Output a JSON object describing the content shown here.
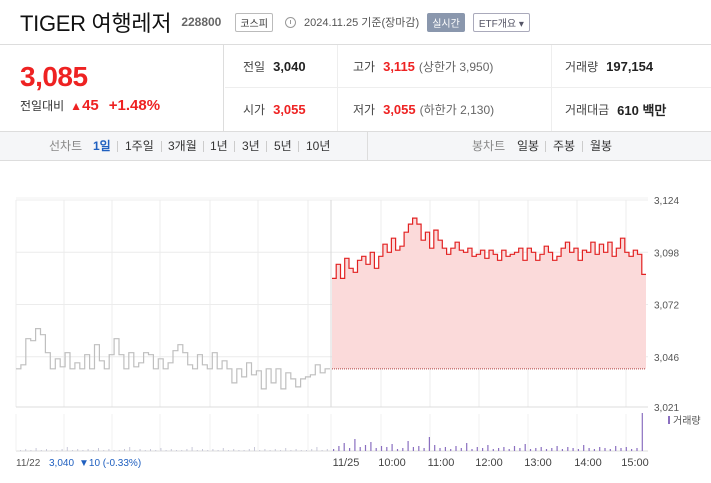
{
  "header": {
    "title": "TIGER 여행레저",
    "code": "228800",
    "market": "코스피",
    "date": "2024.11.25 기준(장마감)",
    "realtime": "실시간",
    "etf_overview": "ETF개요 ▾"
  },
  "price": {
    "current": "3,085",
    "change_label": "전일대비",
    "change_icon": "up-triangle",
    "change_value": "45",
    "change_percent": "+1.48%",
    "up_color": "#e22222"
  },
  "stats": {
    "prev_close_label": "전일",
    "prev_close": "3,040",
    "high_label": "고가",
    "high": "3,115",
    "upper_limit_text": "(상한가 3,950)",
    "volume_label": "거래량",
    "volume": "197,154",
    "open_label": "시가",
    "open": "3,055",
    "low_label": "저가",
    "low": "3,055",
    "lower_limit_text": "(하한가 2,130)",
    "amount_label": "거래대금",
    "amount": "610 백만"
  },
  "toolbar": {
    "line_label": "선차트",
    "periods": [
      "1일",
      "1주일",
      "3개월",
      "1년",
      "3년",
      "5년",
      "10년"
    ],
    "active_period": "1일",
    "candle_label": "봉차트",
    "candles": [
      "일봉",
      "주봉",
      "월봉"
    ]
  },
  "chart_data": {
    "type": "line",
    "y_ticks": [
      "3,124",
      "3,098",
      "3,072",
      "3,046",
      "3,021"
    ],
    "ylim": [
      3021,
      3124
    ],
    "x_labels": [
      "11/25",
      "10:00",
      "11:00",
      "12:00",
      "13:00",
      "14:00",
      "15:00"
    ],
    "volume_legend": "거래량",
    "prev_day_label": "11/22",
    "prev_day_close": "3,040",
    "prev_day_change": "▼10 (-0.33%)",
    "prev_day_series": [
      3040,
      3042,
      3055,
      3054,
      3060,
      3057,
      3048,
      3040,
      3045,
      3041,
      3048,
      3040,
      3043,
      3040,
      3047,
      3040,
      3052,
      3044,
      3040,
      3047,
      3055,
      3047,
      3040,
      3048,
      3041,
      3043,
      3048,
      3047,
      3040,
      3045,
      3040,
      3043,
      3049,
      3052,
      3048,
      3042,
      3040,
      3047,
      3042,
      3040,
      3048,
      3040,
      3044,
      3040,
      3033,
      3040,
      3036,
      3043,
      3037,
      3039,
      3030,
      3040,
      3033,
      3040,
      3030,
      3038,
      3035,
      3031,
      3035,
      3036,
      3037,
      3042,
      3038,
      3040
    ],
    "today_series": [
      3085,
      3092,
      3085,
      3095,
      3090,
      3088,
      3094,
      3096,
      3092,
      3098,
      3090,
      3096,
      3102,
      3098,
      3105,
      3099,
      3101,
      3108,
      3112,
      3115,
      3112,
      3104,
      3108,
      3100,
      3109,
      3104,
      3100,
      3097,
      3100,
      3103,
      3099,
      3098,
      3100,
      3096,
      3097,
      3099,
      3095,
      3099,
      3097,
      3094,
      3099,
      3096,
      3097,
      3098,
      3100,
      3094,
      3100,
      3098,
      3094,
      3097,
      3101,
      3098,
      3094,
      3096,
      3100,
      3103,
      3098,
      3100,
      3094,
      3099,
      3098,
      3103,
      3097,
      3102,
      3098,
      3103,
      3096,
      3100,
      3105,
      3098,
      3096,
      3099,
      3097,
      3087
    ],
    "baseline": 3040,
    "line_color": "#e22222",
    "fill_color": "#fbdada",
    "grey_color": "#bfbfbf"
  }
}
